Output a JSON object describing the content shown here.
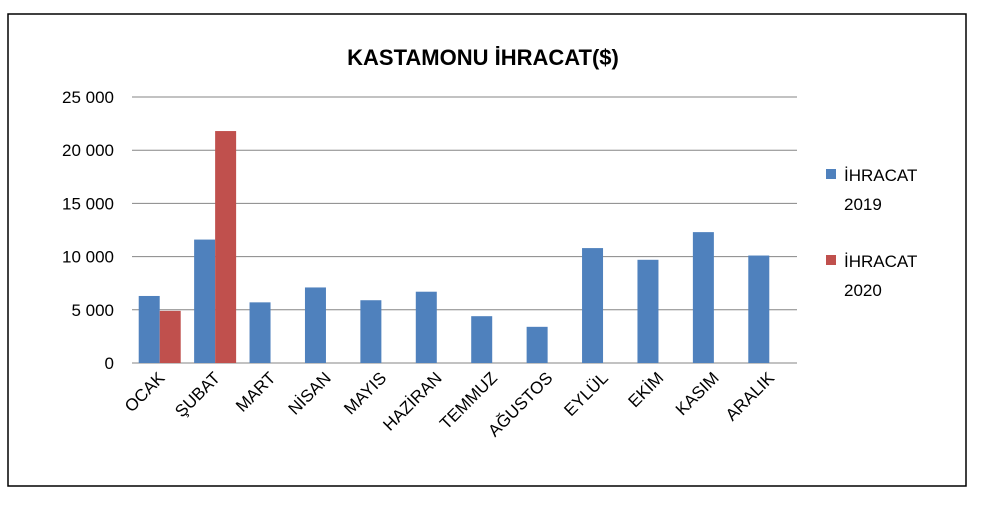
{
  "chart_data": {
    "type": "bar",
    "title": "KASTAMONU İHRACAT($)",
    "xlabel": "",
    "ylabel": "",
    "categories": [
      "OCAK",
      "ŞUBAT",
      "MART",
      "NİSAN",
      "MAYIS",
      "HAZİRAN",
      "TEMMUZ",
      "AĞUSTOS",
      "EYLÜL",
      "EKİM",
      "KASIM",
      "ARALIK"
    ],
    "series": [
      {
        "name": "İHRACAT 2019",
        "legend_lines": [
          "İHRACAT",
          "2019"
        ],
        "color": "#4F81BD",
        "values": [
          6300,
          11600,
          5700,
          7100,
          5900,
          6700,
          4400,
          3400,
          10800,
          9700,
          12300,
          10100
        ]
      },
      {
        "name": "İHRACAT 2020",
        "legend_lines": [
          "İHRACAT",
          "2020"
        ],
        "color": "#C0504D",
        "values": [
          4900,
          21800,
          null,
          null,
          null,
          null,
          null,
          null,
          null,
          null,
          null,
          null
        ]
      }
    ],
    "ylim": [
      0,
      25000
    ],
    "yticks": [
      0,
      5000,
      10000,
      15000,
      20000,
      25000
    ],
    "ytick_labels": [
      "0",
      "5 000",
      "10 000",
      "15 000",
      "20 000",
      "25 000"
    ],
    "grid": true,
    "legend_position": "right"
  }
}
